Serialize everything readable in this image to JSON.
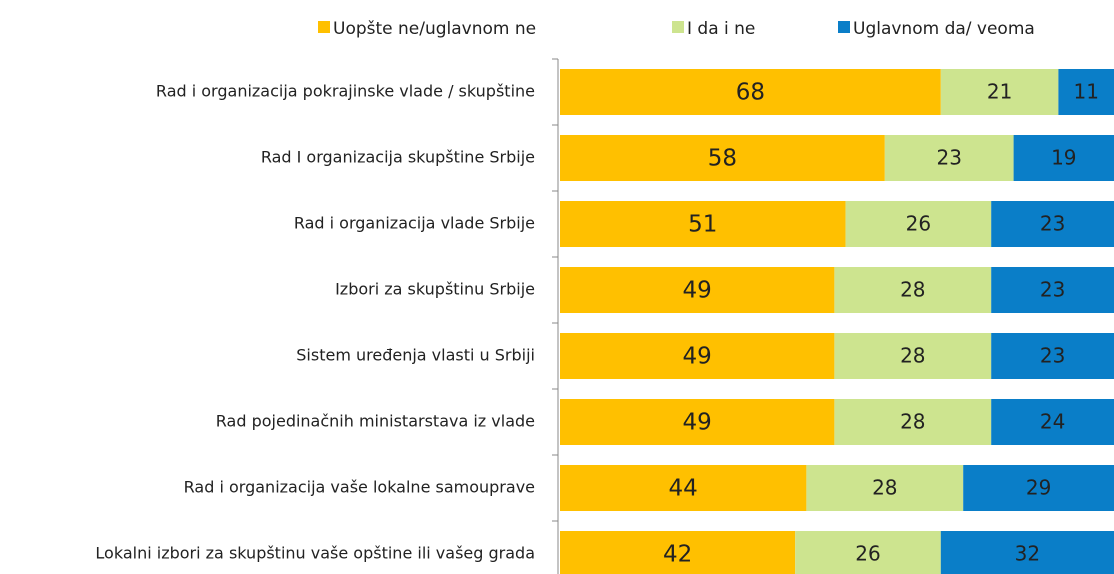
{
  "chart_data": {
    "type": "stacked_barh",
    "categories": [
      "Rad i organizacija pokrajinske vlade / skupštine",
      "Rad I organizacija skupštine Srbije",
      "Rad i organizacija vlade Srbije",
      "Izbori za skupštinu Srbije",
      "Sistem uređenja vlasti u Srbiji ",
      "Rad pojedinačnih ministarstava iz vlade",
      "Rad i organizacija vaše lokalne samouprave",
      "Lokalni izbori za skupštinu vaše opštine ili vašeg grada"
    ],
    "series": [
      {
        "name": "Uopšte ne/uglavnom ne",
        "color": "#ffc000",
        "values": [
          68,
          58,
          51,
          49,
          49,
          49,
          44,
          42
        ]
      },
      {
        "name": "I da i ne",
        "color": "#cde48f",
        "values": [
          21,
          23,
          26,
          28,
          28,
          28,
          28,
          26
        ]
      },
      {
        "name": "Uglavnom da/ veoma",
        "color": "#0a7ec8",
        "values": [
          11,
          19,
          23,
          23,
          23,
          24,
          29,
          32
        ]
      }
    ],
    "xlim": [
      0,
      100
    ],
    "legend": "top"
  }
}
